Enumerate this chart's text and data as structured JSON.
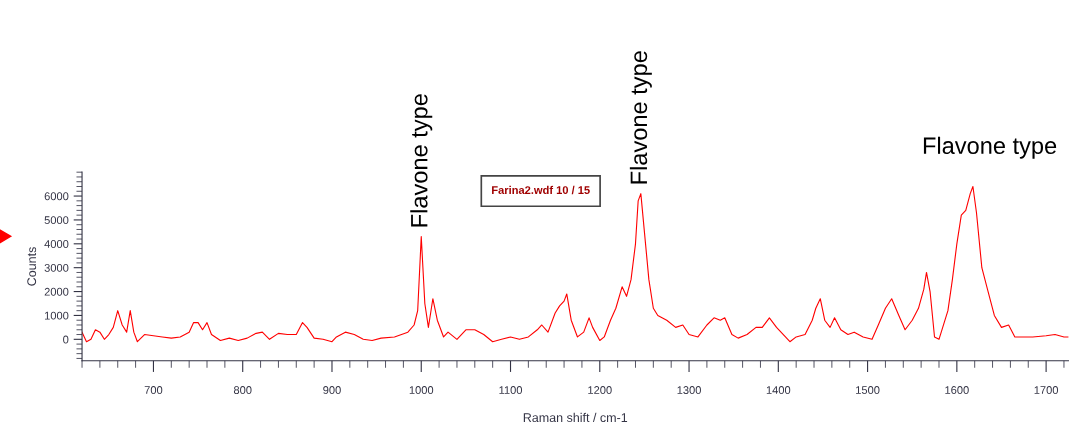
{
  "chart_data": {
    "type": "line",
    "xlabel": "Raman shift / cm-1",
    "ylabel": "Counts",
    "xlim": [
      620,
      1725
    ],
    "ylim": [
      -900,
      7000
    ],
    "xticks": [
      700,
      800,
      900,
      1000,
      1100,
      1200,
      1300,
      1400,
      1500,
      1600,
      1700
    ],
    "yticks": [
      0,
      1000,
      2000,
      3000,
      4000,
      5000,
      6000
    ],
    "grid": false,
    "legend": false,
    "marker": "none",
    "line_style": "solid",
    "annotations": [
      {
        "text": "Flavone type",
        "x": 1000,
        "y": 4300
      },
      {
        "text": "Flavone type",
        "x": 1246,
        "y": 6100
      },
      {
        "text": "Flavone type",
        "x": 1618,
        "y": 6400
      },
      "Farina2.wdf 10 / 15"
    ],
    "series": [
      {
        "color": "#ff0000",
        "x": [
          620,
          625,
          630,
          635,
          640,
          645,
          650,
          655,
          660,
          665,
          670,
          674,
          678,
          682,
          690,
          700,
          710,
          720,
          730,
          740,
          745,
          750,
          755,
          760,
          765,
          775,
          785,
          795,
          805,
          815,
          822,
          830,
          840,
          850,
          860,
          867,
          872,
          880,
          890,
          900,
          905,
          915,
          925,
          935,
          945,
          955,
          970,
          985,
          992,
          996,
          1000,
          1004,
          1008,
          1013,
          1018,
          1025,
          1030,
          1040,
          1050,
          1060,
          1070,
          1080,
          1090,
          1100,
          1110,
          1120,
          1130,
          1135,
          1142,
          1150,
          1155,
          1160,
          1163,
          1168,
          1175,
          1182,
          1188,
          1192,
          1200,
          1205,
          1212,
          1218,
          1225,
          1230,
          1235,
          1240,
          1243,
          1246,
          1250,
          1255,
          1260,
          1265,
          1275,
          1285,
          1293,
          1300,
          1310,
          1320,
          1328,
          1335,
          1340,
          1348,
          1355,
          1365,
          1375,
          1382,
          1390,
          1398,
          1408,
          1413,
          1420,
          1430,
          1438,
          1442,
          1447,
          1452,
          1458,
          1463,
          1470,
          1478,
          1485,
          1495,
          1505,
          1512,
          1520,
          1527,
          1535,
          1542,
          1550,
          1557,
          1563,
          1566,
          1570,
          1575,
          1580,
          1590,
          1595,
          1600,
          1605,
          1610,
          1615,
          1618,
          1622,
          1628,
          1635,
          1642,
          1650,
          1658,
          1665,
          1675,
          1685,
          1700,
          1710,
          1720,
          1725
        ],
        "values": [
          300,
          -100,
          0,
          400,
          300,
          0,
          200,
          500,
          1200,
          600,
          300,
          1200,
          300,
          -100,
          200,
          150,
          100,
          50,
          100,
          300,
          700,
          700,
          400,
          700,
          200,
          -50,
          50,
          -50,
          50,
          250,
          300,
          0,
          250,
          200,
          200,
          700,
          500,
          50,
          0,
          -100,
          100,
          300,
          200,
          0,
          -50,
          50,
          100,
          300,
          600,
          1200,
          4300,
          1500,
          500,
          1700,
          800,
          100,
          300,
          0,
          400,
          400,
          200,
          -100,
          0,
          100,
          0,
          100,
          400,
          600,
          300,
          1100,
          1400,
          1600,
          1900,
          800,
          100,
          300,
          900,
          500,
          -50,
          100,
          800,
          1300,
          2200,
          1800,
          2500,
          4000,
          5800,
          6100,
          4500,
          2500,
          1300,
          1000,
          800,
          500,
          600,
          200,
          100,
          600,
          900,
          800,
          900,
          200,
          50,
          200,
          500,
          500,
          900,
          500,
          100,
          -100,
          100,
          200,
          800,
          1300,
          1700,
          800,
          500,
          900,
          400,
          200,
          300,
          100,
          0,
          600,
          1300,
          1700,
          1000,
          400,
          800,
          1300,
          2100,
          2800,
          2000,
          100,
          0,
          1200,
          2500,
          4000,
          5200,
          5400,
          6100,
          6400,
          5300,
          3000,
          2000,
          1000,
          500,
          600,
          100,
          100,
          100,
          150,
          200,
          100,
          100
        ]
      }
    ]
  }
}
